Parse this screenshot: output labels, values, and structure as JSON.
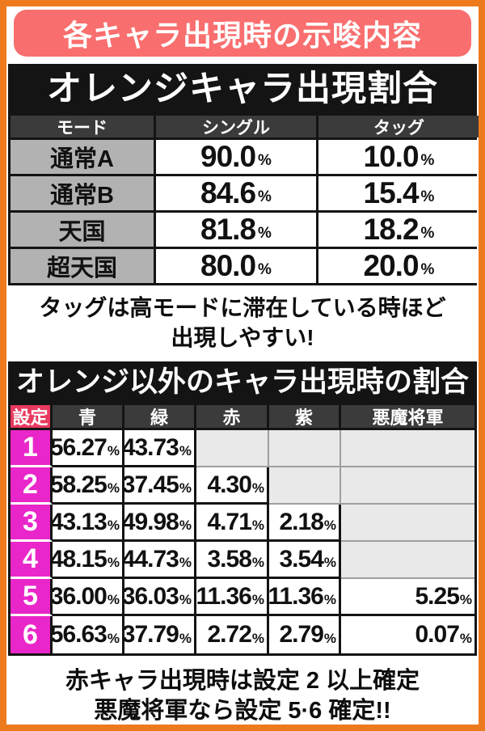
{
  "banner": {
    "title": "各キャラ出現時の示唆内容"
  },
  "percent_sign": "%",
  "table1": {
    "title": "オレンジキャラ出現割合",
    "headers": [
      "モード",
      "シングル",
      "タッグ"
    ],
    "rows": [
      {
        "mode": "通常A",
        "single": "90.0",
        "tag": "10.0"
      },
      {
        "mode": "通常B",
        "single": "84.6",
        "tag": "15.4"
      },
      {
        "mode": "天国",
        "single": "81.8",
        "tag": "18.2"
      },
      {
        "mode": "超天国",
        "single": "80.0",
        "tag": "20.0"
      }
    ]
  },
  "note1": {
    "line1": "タッグは高モードに滞在している時ほど",
    "line2": "出現しやすい!"
  },
  "table2": {
    "title": "オレンジ以外のキャラ出現時の割合",
    "headers": [
      "設定",
      "青",
      "緑",
      "赤",
      "紫",
      "悪魔将軍"
    ],
    "rows": [
      {
        "setting": "1",
        "values": [
          "56.27",
          "43.73",
          "",
          "",
          ""
        ]
      },
      {
        "setting": "2",
        "values": [
          "58.25",
          "37.45",
          "4.30",
          "",
          ""
        ]
      },
      {
        "setting": "3",
        "values": [
          "43.13",
          "49.98",
          "4.71",
          "2.18",
          ""
        ]
      },
      {
        "setting": "4",
        "values": [
          "48.15",
          "44.73",
          "3.58",
          "3.54",
          ""
        ]
      },
      {
        "setting": "5",
        "values": [
          "36.00",
          "36.03",
          "11.36",
          "11.36",
          "5.25"
        ]
      },
      {
        "setting": "6",
        "values": [
          "56.63",
          "37.79",
          "2.72",
          "2.79",
          "0.07"
        ]
      }
    ]
  },
  "note2": {
    "line1": "赤キャラ出現時は設定 2 以上確定",
    "line2": "悪魔将軍なら設定 5·6 確定!!"
  },
  "colors": {
    "orange": "#ee7a1e",
    "coral": "#f96e6e",
    "rose": "#e83a5f",
    "magenta": "#e926c9"
  }
}
